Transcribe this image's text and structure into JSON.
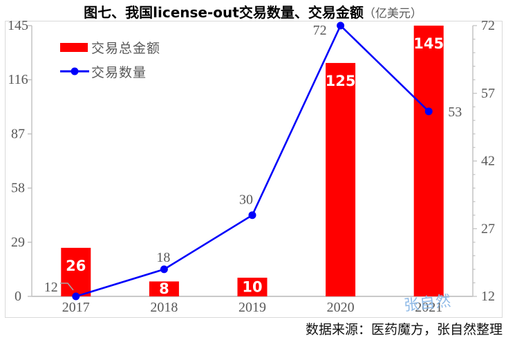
{
  "title": {
    "main": "图七、我国license-out交易数量、交易金额",
    "unit": "（亿美元）"
  },
  "legend": [
    {
      "label": "交易总金额",
      "type": "bar",
      "color": "#FF0000"
    },
    {
      "label": "交易数量",
      "type": "line",
      "color": "#0000FA"
    }
  ],
  "watermark": "张自然",
  "source": "数据来源：医药魔方，张自然整理",
  "colors": {
    "bar": "#FF0000",
    "line": "#0000FA",
    "axis_line": "#BFBFBF",
    "baseline": "#C9C9C9",
    "tick_text": "#595959",
    "frame_border": "#D9D9D9",
    "leader_line": "#A6A6A6",
    "watermark": "#8AB7E6"
  },
  "chart_data": {
    "type": "bar+line combo",
    "title": "图七、我国license-out交易数量、交易金额（亿美元）",
    "categories": [
      "2017",
      "2018",
      "2019",
      "2020",
      "2021"
    ],
    "series": [
      {
        "name": "交易总金额",
        "type": "bar",
        "axis": "left",
        "color": "#FF0000",
        "values": [
          26,
          8,
          10,
          125,
          145
        ]
      },
      {
        "name": "交易数量",
        "type": "line",
        "axis": "right",
        "color": "#0000FA",
        "values": [
          12,
          18,
          30,
          72,
          53
        ]
      }
    ],
    "left_axis": {
      "range": [
        0,
        145
      ],
      "ticks": [
        0,
        29,
        58,
        87,
        116,
        145
      ]
    },
    "right_axis": {
      "range": [
        12,
        72
      ],
      "ticks": [
        12,
        27,
        42,
        57,
        72
      ],
      "minor_step": 3
    },
    "grid": false,
    "legend_position": "top-left-inside",
    "data_labels": true
  }
}
